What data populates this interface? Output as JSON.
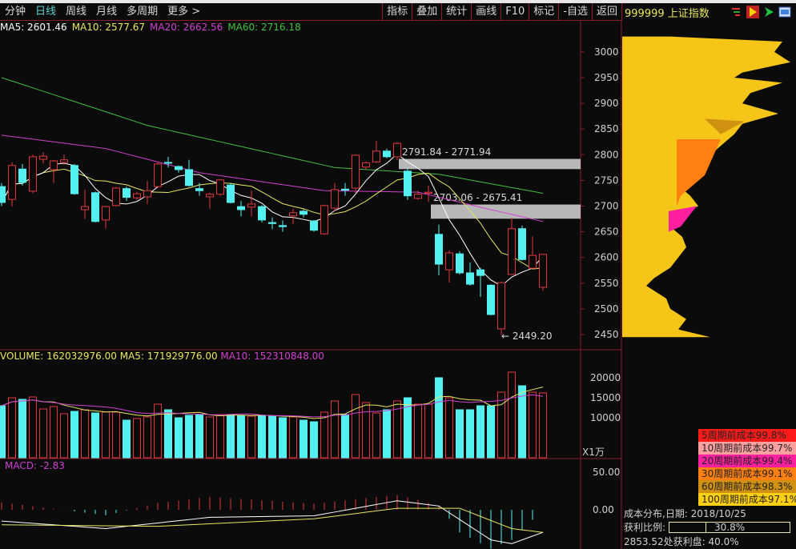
{
  "toolbar": {
    "tabs": [
      {
        "label": "分钟"
      },
      {
        "label": "日线",
        "active": true
      },
      {
        "label": "周线"
      },
      {
        "label": "月线"
      },
      {
        "label": "多周期"
      },
      {
        "label": "更多 >"
      }
    ],
    "buttons": [
      "指标",
      "叠加",
      "统计",
      "画线",
      "F10",
      "标记",
      "-自选",
      "返回"
    ]
  },
  "security": {
    "code_name": "999999 上证指数"
  },
  "ma_legend": {
    "ma5": "MA5: 2601.46",
    "ma10": "MA10: 2577.67",
    "ma20": "MA20: 2662.56",
    "ma60": "MA60: 2716.18"
  },
  "colors": {
    "up": "#e0383e",
    "down": "#54f0f0",
    "ma5": "#ffffff",
    "ma10": "#e8e860",
    "ma20": "#d040d0",
    "ma60": "#40c040",
    "chip": "#f5c518"
  },
  "price_axis": {
    "ticks": [
      "3000",
      "2950",
      "2900",
      "2850",
      "2800",
      "2750",
      "2700",
      "2650",
      "2600",
      "2550",
      "2500",
      "2450"
    ]
  },
  "annotations": {
    "zone1": "2791.84 - 2771.94",
    "zone2": "2703.06 - 2675.41",
    "low": "2449.20"
  },
  "zones": [
    [
      2771.94,
      2791.84
    ],
    [
      2675.41,
      2703.06
    ]
  ],
  "candles": [
    [
      2738,
      2745,
      2700,
      2707
    ],
    [
      2713,
      2785,
      2699,
      2779
    ],
    [
      2772,
      2782,
      2740,
      2746
    ],
    [
      2729,
      2800,
      2725,
      2796
    ],
    [
      2791,
      2805,
      2783,
      2797
    ],
    [
      2771,
      2790,
      2745,
      2788
    ],
    [
      2785,
      2800,
      2780,
      2790
    ],
    [
      2779,
      2782,
      2722,
      2724
    ],
    [
      2693,
      2732,
      2675,
      2699
    ],
    [
      2726,
      2728,
      2668,
      2670
    ],
    [
      2673,
      2701,
      2656,
      2699
    ],
    [
      2701,
      2737,
      2699,
      2735
    ],
    [
      2734,
      2738,
      2710,
      2717
    ],
    [
      2716,
      2728,
      2712,
      2724
    ],
    [
      2718,
      2749,
      2704,
      2730
    ],
    [
      2738,
      2785,
      2735,
      2782
    ],
    [
      2785,
      2796,
      2775,
      2784
    ],
    [
      2777,
      2779,
      2765,
      2771
    ],
    [
      2771,
      2790,
      2738,
      2740
    ],
    [
      2734,
      2745,
      2720,
      2730
    ],
    [
      2718,
      2726,
      2695,
      2723
    ],
    [
      2723,
      2753,
      2720,
      2751
    ],
    [
      2741,
      2745,
      2705,
      2707
    ],
    [
      2699,
      2710,
      2680,
      2693
    ],
    [
      2698,
      2730,
      2680,
      2704
    ],
    [
      2699,
      2702,
      2668,
      2673
    ],
    [
      2668,
      2678,
      2655,
      2666
    ],
    [
      2662,
      2672,
      2650,
      2660
    ],
    [
      2681,
      2695,
      2665,
      2687
    ],
    [
      2690,
      2694,
      2678,
      2684
    ],
    [
      2671,
      2673,
      2650,
      2653
    ],
    [
      2646,
      2703,
      2644,
      2701
    ],
    [
      2696,
      2745,
      2690,
      2732
    ],
    [
      2733,
      2745,
      2720,
      2731
    ],
    [
      2735,
      2801,
      2725,
      2799
    ],
    [
      2776,
      2787,
      2770,
      2784
    ],
    [
      2786,
      2827,
      2784,
      2807
    ],
    [
      2807,
      2812,
      2793,
      2796
    ],
    [
      2796,
      2824,
      2790,
      2822
    ],
    [
      2768,
      2775,
      2712,
      2720
    ],
    [
      2715,
      2730,
      2712,
      2723
    ],
    [
      2725,
      2740,
      2708,
      2727
    ],
    [
      2645,
      2664,
      2565,
      2587
    ],
    [
      2576,
      2614,
      2551,
      2609
    ],
    [
      2607,
      2612,
      2567,
      2570
    ],
    [
      2570,
      2590,
      2545,
      2548
    ],
    [
      2576,
      2580,
      2523,
      2565
    ],
    [
      2546,
      2548,
      2487,
      2489
    ],
    [
      2461,
      2553,
      2449,
      2551
    ],
    [
      2567,
      2677,
      2567,
      2656
    ],
    [
      2656,
      2662,
      2594,
      2596
    ],
    [
      2579,
      2641,
      2578,
      2604
    ],
    [
      2542,
      2606,
      2535,
      2606
    ]
  ],
  "ma20_points": [
    [
      0,
      2838
    ],
    [
      10,
      2812
    ],
    [
      19,
      2765
    ],
    [
      31,
      2730
    ],
    [
      40,
      2727
    ],
    [
      47,
      2693
    ],
    [
      52,
      2670
    ]
  ],
  "ma60_points": [
    [
      0,
      2950
    ],
    [
      14,
      2857
    ],
    [
      32,
      2775
    ],
    [
      42,
      2762
    ],
    [
      52,
      2725
    ]
  ],
  "volume": {
    "label": "VOLUME: 162032976.00",
    "ma5": "MA5: 171929776.00",
    "ma10": "MA10: 152310848.00",
    "unit": "X1万",
    "ticks": [
      "20000",
      "15000",
      "10000"
    ],
    "values": [
      13000,
      15000,
      14600,
      15200,
      12200,
      12800,
      11000,
      11600,
      12000,
      11200,
      11400,
      11400,
      9400,
      9800,
      10200,
      13400,
      12000,
      10000,
      10600,
      10800,
      10200,
      10800,
      10800,
      10600,
      10400,
      10600,
      10400,
      10000,
      10200,
      9400,
      9000,
      11400,
      14200,
      10800,
      15800,
      13800,
      11200,
      12000,
      14200,
      15000,
      13400,
      13400,
      20000,
      15000,
      12000,
      12000,
      13000,
      13000,
      16400,
      21400,
      18000,
      16400,
      16200
    ]
  },
  "macd": {
    "label": "MACD: -2.83",
    "ticks": [
      "50.00",
      "0.00"
    ],
    "dif_points": [
      [
        0,
        -15
      ],
      [
        10,
        -25
      ],
      [
        20,
        -10
      ],
      [
        30,
        -8
      ],
      [
        38,
        12
      ],
      [
        42,
        5
      ],
      [
        47,
        -40
      ],
      [
        49,
        -45
      ],
      [
        52,
        -30
      ]
    ],
    "dea_points": [
      [
        0,
        -20
      ],
      [
        15,
        -22
      ],
      [
        30,
        -12
      ],
      [
        38,
        2
      ],
      [
        44,
        2
      ],
      [
        49,
        -25
      ],
      [
        52,
        -30
      ]
    ]
  },
  "chip": {
    "profile": [
      [
        3030,
        60
      ],
      [
        3020,
        200
      ],
      [
        3000,
        190
      ],
      [
        2980,
        210
      ],
      [
        2960,
        150
      ],
      [
        2950,
        140
      ],
      [
        2940,
        200
      ],
      [
        2920,
        160
      ],
      [
        2900,
        150
      ],
      [
        2880,
        195
      ],
      [
        2860,
        150
      ],
      [
        2840,
        140
      ],
      [
        2820,
        125
      ],
      [
        2800,
        110
      ],
      [
        2780,
        95
      ],
      [
        2760,
        80
      ],
      [
        2740,
        70
      ],
      [
        2720,
        85
      ],
      [
        2700,
        95
      ],
      [
        2680,
        70
      ],
      [
        2660,
        60
      ],
      [
        2640,
        75
      ],
      [
        2620,
        80
      ],
      [
        2600,
        70
      ],
      [
        2580,
        60
      ],
      [
        2560,
        40
      ],
      [
        2545,
        30
      ],
      [
        2520,
        55
      ],
      [
        2500,
        60
      ],
      [
        2480,
        80
      ],
      [
        2460,
        70
      ],
      [
        2445,
        110
      ]
    ],
    "legend": [
      {
        "label": "5周期前成本99.8%",
        "color": "#ff1a1a"
      },
      {
        "label": "10周期前成本99.7%",
        "color": "#ffa0a0"
      },
      {
        "label": "20周期前成本99.4%",
        "color": "#ff20a0"
      },
      {
        "label": "30周期前成本99.1%",
        "color": "#ff8010"
      },
      {
        "label": "60周期前成本98.3%",
        "color": "#d09010"
      },
      {
        "label": "100周期前成本97.1%",
        "color": "#ffd010"
      }
    ],
    "date_label": "成本分布,日期: 2018/10/25",
    "profit_label": "获利比例:",
    "profit_ratio": 30.8,
    "profit_text": "30.8%",
    "outside": "2853.52处获利盘: 40.0%"
  }
}
